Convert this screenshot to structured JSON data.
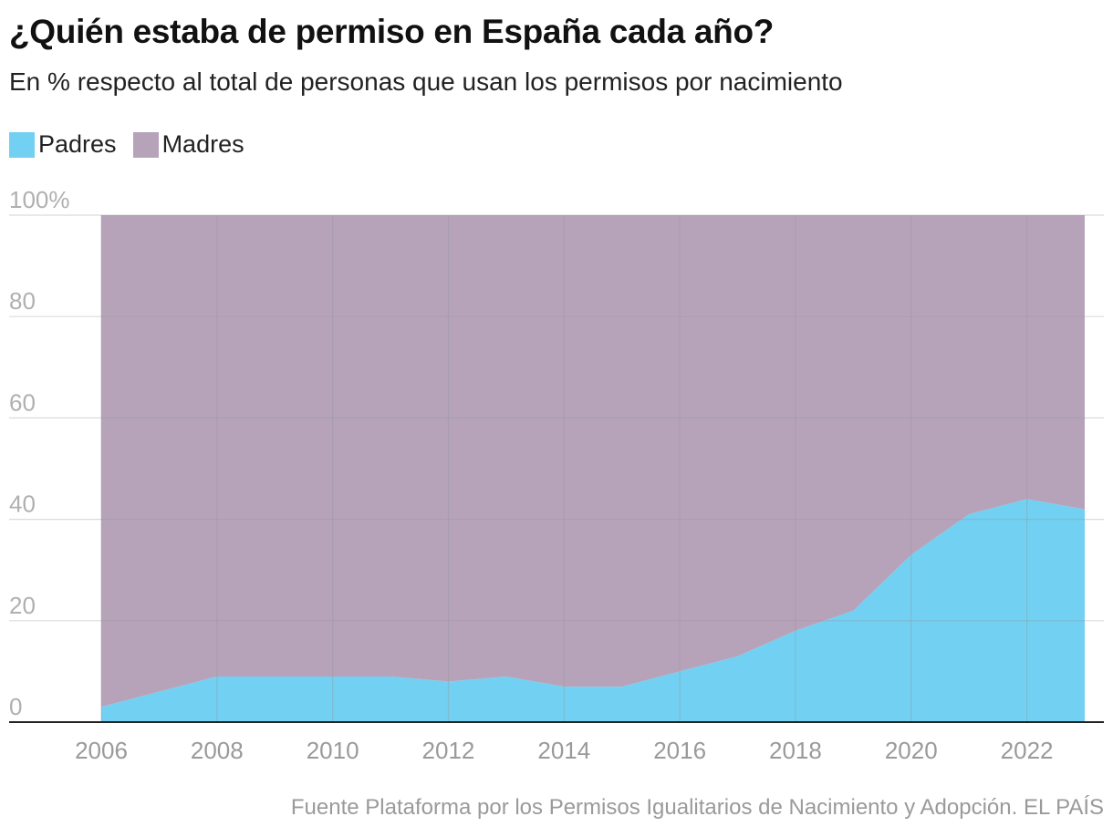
{
  "title": "¿Quién estaba de permiso en España cada año?",
  "subtitle": "En % respecto al total de personas que usan los permisos por nacimiento",
  "legend": [
    {
      "label": "Padres",
      "color": "#72d0f2"
    },
    {
      "label": "Madres",
      "color": "#b6a3ba"
    }
  ],
  "source": "Fuente Plataforma por los Permisos Igualitarios de Nacimiento y Adopción. EL PAÍS",
  "chart_data": {
    "type": "area",
    "stacked": true,
    "normalized": true,
    "title": "¿Quién estaba de permiso en España cada año?",
    "ylabel": "En % respecto al total de personas que usan los permisos por nacimiento",
    "x": [
      2006,
      2007,
      2008,
      2009,
      2010,
      2011,
      2012,
      2013,
      2014,
      2015,
      2016,
      2017,
      2018,
      2019,
      2020,
      2021,
      2022,
      2023
    ],
    "series": [
      {
        "name": "Padres",
        "color": "#72d0f2",
        "values": [
          3,
          6,
          9,
          9,
          9,
          9,
          8,
          9,
          7,
          7,
          10,
          13,
          18,
          22,
          33,
          41,
          44,
          42
        ]
      },
      {
        "name": "Madres",
        "color": "#b6a3ba",
        "values": [
          97,
          94,
          91,
          91,
          91,
          91,
          92,
          91,
          93,
          93,
          90,
          87,
          82,
          78,
          67,
          59,
          56,
          58
        ]
      }
    ],
    "ylim": [
      0,
      100
    ],
    "yticks": [
      0,
      20,
      40,
      60,
      80,
      100
    ],
    "ytick_labels": [
      "0",
      "20",
      "40",
      "60",
      "80",
      "100%"
    ],
    "xticks": [
      2006,
      2008,
      2010,
      2012,
      2014,
      2016,
      2018,
      2020,
      2022
    ],
    "xtick_labels": [
      "2006",
      "2008",
      "2010",
      "2012",
      "2014",
      "2016",
      "2018",
      "2020",
      "2022"
    ],
    "grid": true,
    "legend_position": "top-left"
  }
}
